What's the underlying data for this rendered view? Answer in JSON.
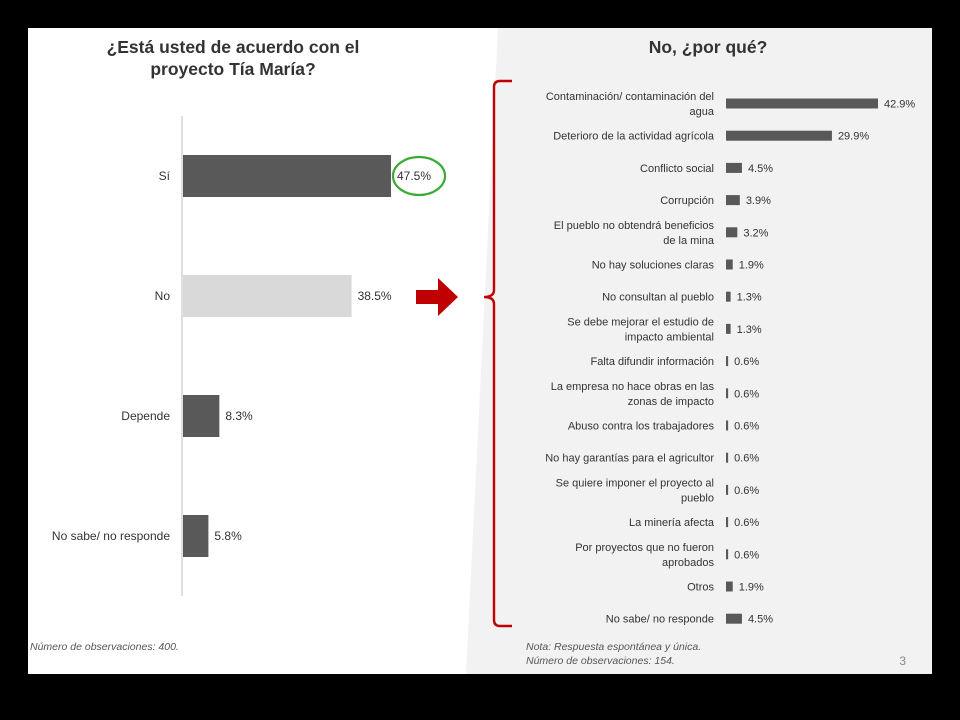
{
  "left_title": "¿Está usted de acuerdo con el proyecto Tía María?",
  "right_title": "No, ¿por qué?",
  "left_note": "Número de observaciones: 400.",
  "right_note_1": "Nota: Respuesta espontánea y única.",
  "right_note_2": "Número de observaciones: 154.",
  "page_number": "3",
  "colors": {
    "dark_bar": "#595959",
    "light_bar": "#d9d9d9",
    "highlight_circle": "#3aaa35",
    "arrow": "#c00000",
    "bracket": "#c00000",
    "right_panel_bg": "#f2f2f2"
  },
  "chart_data": [
    {
      "type": "bar",
      "orientation": "horizontal",
      "title": "¿Está usted de acuerdo con el proyecto Tía María?",
      "categories": [
        "Sí",
        "No",
        "Depende",
        "No sabe/ no responde"
      ],
      "values": [
        47.5,
        38.5,
        8.3,
        5.8
      ],
      "labels": [
        "47.5%",
        "38.5%",
        "8.3%",
        "5.8%"
      ],
      "bar_colors": [
        "#595959",
        "#d9d9d9",
        "#595959",
        "#595959"
      ],
      "highlighted_category": "Sí",
      "xlim": [
        0,
        50
      ]
    },
    {
      "type": "bar",
      "orientation": "horizontal",
      "title": "No, ¿por qué?",
      "categories": [
        "Contaminación/ contaminación del agua",
        "Deterioro de la actividad agrícola",
        "Conflicto social",
        "Corrupción",
        "El pueblo no obtendrá beneficios de la mina",
        "No hay soluciones claras",
        "No consultan al pueblo",
        "Se debe mejorar el estudio de impacto ambiental",
        "Falta difundir información",
        "La empresa no hace obras en las zonas de impacto",
        "Abuso contra los trabajadores",
        "No hay garantías para el agricultor",
        "Se quiere imponer el proyecto al pueblo",
        "La minería afecta",
        "Por proyectos que no fueron aprobados",
        "Otros",
        "No sabe/ no responde"
      ],
      "category_lines": [
        [
          "Contaminación/ contaminación del",
          "agua"
        ],
        [
          "Deterioro de la actividad agrícola"
        ],
        [
          "Conflicto social"
        ],
        [
          "Corrupción"
        ],
        [
          "El pueblo no obtendrá beneficios",
          "de la mina"
        ],
        [
          "No hay soluciones claras"
        ],
        [
          "No consultan al pueblo"
        ],
        [
          "Se debe mejorar el estudio de",
          "impacto ambiental"
        ],
        [
          "Falta difundir información"
        ],
        [
          "La empresa no hace obras en las",
          "zonas de impacto"
        ],
        [
          "Abuso contra los trabajadores"
        ],
        [
          "No hay garantías para el agricultor"
        ],
        [
          "Se quiere imponer el proyecto al",
          "pueblo"
        ],
        [
          "La minería afecta"
        ],
        [
          "Por proyectos que no fueron",
          "aprobados"
        ],
        [
          "Otros"
        ],
        [
          "No sabe/ no responde"
        ]
      ],
      "values": [
        42.9,
        29.9,
        4.5,
        3.9,
        3.2,
        1.9,
        1.3,
        1.3,
        0.6,
        0.6,
        0.6,
        0.6,
        0.6,
        0.6,
        0.6,
        1.9,
        4.5
      ],
      "labels": [
        "42.9%",
        "29.9%",
        "4.5%",
        "3.9%",
        "3.2%",
        "1.9%",
        "1.3%",
        "1.3%",
        "0.6%",
        "0.6%",
        "0.6%",
        "0.6%",
        "0.6%",
        "0.6%",
        "0.6%",
        "1.9%",
        "4.5%"
      ],
      "xlim": [
        0,
        45
      ]
    }
  ]
}
